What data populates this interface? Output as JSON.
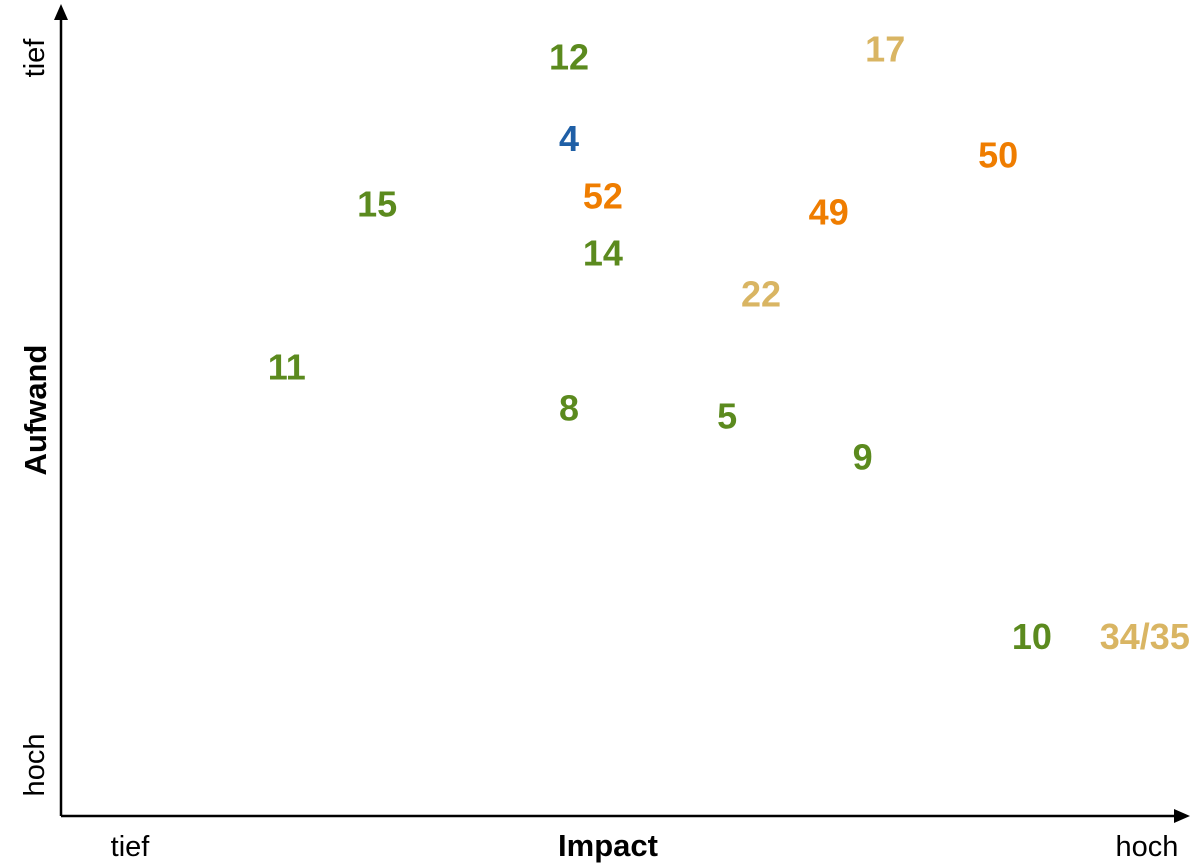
{
  "chart_data": {
    "type": "scatter",
    "xlabel": "Impact",
    "ylabel": "Aufwand",
    "x_ticks": [
      "tief",
      "hoch"
    ],
    "y_ticks": [
      "tief",
      "hoch"
    ],
    "xlim": [
      0,
      100
    ],
    "ylim": [
      0,
      100
    ],
    "y_inverted": true,
    "grid": false,
    "legend": "none",
    "colors": {
      "green": "#5b8a1e",
      "blue": "#1f5fa6",
      "orange": "#ef7d00",
      "tan": "#d9b563"
    },
    "points": [
      {
        "label": "12",
        "x": 45,
        "y": 7,
        "color": "green"
      },
      {
        "label": "17",
        "x": 73,
        "y": 6,
        "color": "tan"
      },
      {
        "label": "4",
        "x": 45,
        "y": 17,
        "color": "blue"
      },
      {
        "label": "50",
        "x": 83,
        "y": 19,
        "color": "orange"
      },
      {
        "label": "15",
        "x": 28,
        "y": 25,
        "color": "green"
      },
      {
        "label": "52",
        "x": 48,
        "y": 24,
        "color": "orange"
      },
      {
        "label": "49",
        "x": 68,
        "y": 26,
        "color": "orange"
      },
      {
        "label": "14",
        "x": 48,
        "y": 31,
        "color": "green"
      },
      {
        "label": "22",
        "x": 62,
        "y": 36,
        "color": "tan"
      },
      {
        "label": "11",
        "x": 20,
        "y": 45,
        "color": "green"
      },
      {
        "label": "8",
        "x": 45,
        "y": 50,
        "color": "green"
      },
      {
        "label": "5",
        "x": 59,
        "y": 51,
        "color": "green"
      },
      {
        "label": "9",
        "x": 71,
        "y": 56,
        "color": "green"
      },
      {
        "label": "10",
        "x": 86,
        "y": 78,
        "color": "green"
      },
      {
        "label": "34/35",
        "x": 96,
        "y": 78,
        "color": "tan"
      }
    ]
  }
}
